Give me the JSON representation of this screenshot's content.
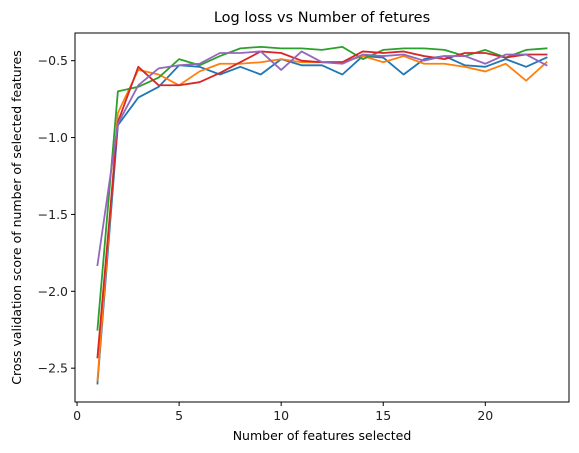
{
  "chart_data": {
    "type": "line",
    "title": "Log loss vs Number of fetures",
    "xlabel": "Number of features selected",
    "ylabel": "Cross validation score of number of selected features",
    "xlim": [
      -0.1,
      24.1
    ],
    "ylim": [
      -2.72,
      -0.32
    ],
    "xticks": [
      0,
      5,
      10,
      15,
      20
    ],
    "yticks": [
      -2.5,
      -2.0,
      -1.5,
      -1.0,
      -0.5
    ],
    "ytick_labels": [
      "−2.5",
      "−2.0",
      "−1.5",
      "−1.0",
      "−0.5"
    ],
    "grid": false,
    "legend": "none",
    "x": [
      1,
      2,
      3,
      4,
      5,
      6,
      7,
      8,
      9,
      10,
      11,
      12,
      13,
      14,
      15,
      16,
      17,
      18,
      19,
      20,
      21,
      22,
      23
    ],
    "series": [
      {
        "color": "#1f77b4",
        "values": [
          -2.6,
          -0.92,
          -0.74,
          -0.67,
          -0.53,
          -0.54,
          -0.59,
          -0.54,
          -0.59,
          -0.49,
          -0.53,
          -0.53,
          -0.59,
          -0.47,
          -0.48,
          -0.59,
          -0.49,
          -0.47,
          -0.53,
          -0.54,
          -0.49,
          -0.54,
          -0.48
        ]
      },
      {
        "color": "#ff7f0e",
        "values": [
          -2.58,
          -0.84,
          -0.56,
          -0.59,
          -0.66,
          -0.57,
          -0.52,
          -0.52,
          -0.51,
          -0.49,
          -0.51,
          -0.51,
          -0.51,
          -0.47,
          -0.51,
          -0.47,
          -0.52,
          -0.52,
          -0.54,
          -0.57,
          -0.52,
          -0.63,
          -0.51
        ]
      },
      {
        "color": "#2ca02c",
        "values": [
          -2.25,
          -0.7,
          -0.67,
          -0.61,
          -0.49,
          -0.53,
          -0.47,
          -0.42,
          -0.41,
          -0.42,
          -0.42,
          -0.43,
          -0.41,
          -0.49,
          -0.43,
          -0.42,
          -0.42,
          -0.43,
          -0.47,
          -0.43,
          -0.48,
          -0.43,
          -0.42
        ]
      },
      {
        "color": "#d62728",
        "values": [
          -2.43,
          -0.9,
          -0.54,
          -0.66,
          -0.66,
          -0.64,
          -0.58,
          -0.51,
          -0.44,
          -0.45,
          -0.5,
          -0.51,
          -0.51,
          -0.44,
          -0.45,
          -0.44,
          -0.47,
          -0.49,
          -0.45,
          -0.45,
          -0.48,
          -0.46,
          -0.46
        ]
      },
      {
        "color": "#9467bd",
        "values": [
          -1.83,
          -0.91,
          -0.66,
          -0.55,
          -0.53,
          -0.52,
          -0.45,
          -0.45,
          -0.44,
          -0.56,
          -0.44,
          -0.51,
          -0.52,
          -0.46,
          -0.47,
          -0.46,
          -0.5,
          -0.47,
          -0.47,
          -0.52,
          -0.46,
          -0.46,
          -0.53
        ]
      }
    ]
  }
}
